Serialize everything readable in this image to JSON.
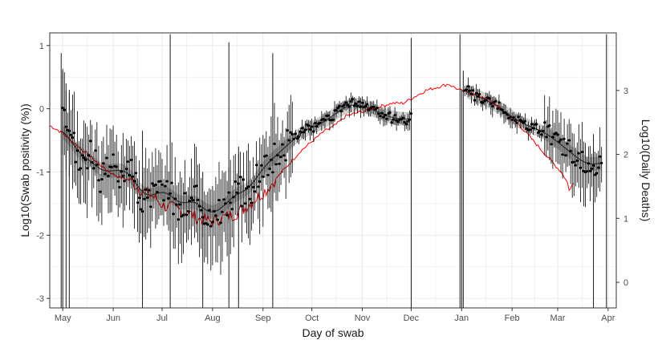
{
  "chart_data": {
    "type": "line",
    "title": "",
    "xlabel": "Day of swab",
    "ylabel": "Log10(Swab positivity (%))",
    "y2label": "Log10(Daily Deaths)",
    "xlim": [
      "2020-04-23",
      "2021-04-06"
    ],
    "ylim": [
      -3.15,
      1.2
    ],
    "y2lim": [
      -0.4,
      3.9
    ],
    "grid": true,
    "legend": "none",
    "x_ticks": [
      {
        "label": "May",
        "date": "2020-05-01"
      },
      {
        "label": "Jun",
        "date": "2020-06-01"
      },
      {
        "label": "Jul",
        "date": "2020-07-01"
      },
      {
        "label": "Aug",
        "date": "2020-08-01"
      },
      {
        "label": "Sep",
        "date": "2020-09-01"
      },
      {
        "label": "Oct",
        "date": "2020-10-01"
      },
      {
        "label": "Nov",
        "date": "2020-11-01"
      },
      {
        "label": "Dec",
        "date": "2020-12-01"
      },
      {
        "label": "Jan",
        "date": "2021-01-01"
      },
      {
        "label": "Feb",
        "date": "2021-02-01"
      },
      {
        "label": "Mar",
        "date": "2021-03-01"
      },
      {
        "label": "Apr",
        "date": "2021-04-01"
      }
    ],
    "y_ticks": [
      1,
      0,
      -1,
      -2,
      -3
    ],
    "y2_ticks": [
      3,
      2,
      1,
      0
    ],
    "colors": {
      "points": "#000000",
      "smooth": "#4d4d4d",
      "ribbon": "#bdbdbd",
      "deaths": "#ff0000",
      "grid": "#ebebeb"
    },
    "series": [
      {
        "values": [
          {
            "x": "2020-05-01",
            "y": -0.18
          },
          {
            "x": "2020-05-06",
            "y": -0.52
          },
          {
            "x": "2020-05-12",
            "y": -0.85
          },
          {
            "x": "2020-05-18",
            "y": -0.7
          },
          {
            "x": "2020-05-24",
            "y": -1.1
          },
          {
            "x": "2020-05-30",
            "y": -0.95
          },
          {
            "x": "2020-06-05",
            "y": -1.0
          },
          {
            "x": "2020-06-11",
            "y": -0.85
          },
          {
            "x": "2020-06-17",
            "y": -1.4
          },
          {
            "x": "2020-06-23",
            "y": -1.45
          },
          {
            "x": "2020-06-29",
            "y": -1.3
          },
          {
            "x": "2020-07-05",
            "y": -1.2
          },
          {
            "x": "2020-07-11",
            "y": -1.65
          },
          {
            "x": "2020-07-17",
            "y": -1.45
          },
          {
            "x": "2020-07-23",
            "y": -1.35
          },
          {
            "x": "2020-07-29",
            "y": -1.8
          },
          {
            "x": "2020-08-04",
            "y": -1.6
          },
          {
            "x": "2020-08-10",
            "y": -1.55
          },
          {
            "x": "2020-08-16",
            "y": -1.2
          },
          {
            "x": "2020-08-22",
            "y": -1.45
          },
          {
            "x": "2020-08-28",
            "y": -1.05
          },
          {
            "x": "2020-09-03",
            "y": -0.85
          },
          {
            "x": "2020-09-09",
            "y": -0.75
          },
          {
            "x": "2020-09-15",
            "y": -0.6
          },
          {
            "x": "2020-09-21",
            "y": -0.45
          },
          {
            "x": "2020-09-27",
            "y": -0.3
          },
          {
            "x": "2020-10-03",
            "y": -0.3
          },
          {
            "x": "2020-10-09",
            "y": -0.2
          },
          {
            "x": "2020-10-15",
            "y": -0.1
          },
          {
            "x": "2020-10-21",
            "y": 0.05
          },
          {
            "x": "2020-10-27",
            "y": 0.1
          },
          {
            "x": "2020-11-02",
            "y": 0.05
          },
          {
            "x": "2020-11-08",
            "y": -0.02
          },
          {
            "x": "2020-11-14",
            "y": -0.1
          },
          {
            "x": "2020-11-20",
            "y": -0.15
          },
          {
            "x": "2020-11-26",
            "y": -0.18
          },
          {
            "x": "2020-12-01",
            "y": -0.15
          },
          {
            "x": "2021-01-03",
            "y": 0.35
          },
          {
            "x": "2021-01-09",
            "y": 0.2
          },
          {
            "x": "2021-01-15",
            "y": 0.15
          },
          {
            "x": "2021-01-21",
            "y": 0.1
          },
          {
            "x": "2021-01-27",
            "y": -0.05
          },
          {
            "x": "2021-02-02",
            "y": -0.15
          },
          {
            "x": "2021-02-08",
            "y": -0.25
          },
          {
            "x": "2021-02-14",
            "y": -0.3
          },
          {
            "x": "2021-02-20",
            "y": -0.35
          },
          {
            "x": "2021-02-26",
            "y": -0.45
          },
          {
            "x": "2021-03-04",
            "y": -0.6
          },
          {
            "x": "2021-03-10",
            "y": -0.7
          },
          {
            "x": "2021-03-16",
            "y": -0.85
          },
          {
            "x": "2021-03-22",
            "y": -0.95
          },
          {
            "x": "2021-03-28",
            "y": -0.8
          }
        ]
      },
      {
        "axis": "right",
        "values": [
          {
            "x": "2020-04-23",
            "y": 2.45
          },
          {
            "x": "2020-04-30",
            "y": 2.35
          },
          {
            "x": "2020-05-07",
            "y": 2.2
          },
          {
            "x": "2020-05-14",
            "y": 2.05
          },
          {
            "x": "2020-05-21",
            "y": 1.9
          },
          {
            "x": "2020-05-28",
            "y": 1.75
          },
          {
            "x": "2020-06-04",
            "y": 1.65
          },
          {
            "x": "2020-06-11",
            "y": 1.6
          },
          {
            "x": "2020-06-18",
            "y": 1.45
          },
          {
            "x": "2020-06-25",
            "y": 1.35
          },
          {
            "x": "2020-07-02",
            "y": 1.2
          },
          {
            "x": "2020-07-09",
            "y": 1.15
          },
          {
            "x": "2020-07-16",
            "y": 1.1
          },
          {
            "x": "2020-07-23",
            "y": 1.0
          },
          {
            "x": "2020-07-30",
            "y": 0.95
          },
          {
            "x": "2020-08-06",
            "y": 1.0
          },
          {
            "x": "2020-08-13",
            "y": 1.05
          },
          {
            "x": "2020-08-20",
            "y": 1.15
          },
          {
            "x": "2020-08-27",
            "y": 1.3
          },
          {
            "x": "2020-09-03",
            "y": 1.45
          },
          {
            "x": "2020-09-10",
            "y": 1.65
          },
          {
            "x": "2020-09-17",
            "y": 1.85
          },
          {
            "x": "2020-09-24",
            "y": 2.05
          },
          {
            "x": "2020-10-01",
            "y": 2.2
          },
          {
            "x": "2020-10-08",
            "y": 2.35
          },
          {
            "x": "2020-10-15",
            "y": 2.45
          },
          {
            "x": "2020-10-22",
            "y": 2.6
          },
          {
            "x": "2020-10-29",
            "y": 2.65
          },
          {
            "x": "2020-11-05",
            "y": 2.7
          },
          {
            "x": "2020-11-12",
            "y": 2.75
          },
          {
            "x": "2020-11-19",
            "y": 2.8
          },
          {
            "x": "2020-11-26",
            "y": 2.8
          },
          {
            "x": "2020-12-03",
            "y": 2.9
          },
          {
            "x": "2020-12-10",
            "y": 3.0
          },
          {
            "x": "2020-12-17",
            "y": 3.05
          },
          {
            "x": "2020-12-24",
            "y": 3.1
          },
          {
            "x": "2020-12-31",
            "y": 3.0
          },
          {
            "x": "2021-01-07",
            "y": 2.95
          },
          {
            "x": "2021-01-14",
            "y": 2.9
          },
          {
            "x": "2021-01-21",
            "y": 2.8
          },
          {
            "x": "2021-01-28",
            "y": 2.65
          },
          {
            "x": "2021-02-04",
            "y": 2.5
          },
          {
            "x": "2021-02-11",
            "y": 2.3
          },
          {
            "x": "2021-02-18",
            "y": 2.1
          },
          {
            "x": "2021-02-25",
            "y": 1.9
          },
          {
            "x": "2021-03-04",
            "y": 1.7
          },
          {
            "x": "2021-03-09",
            "y": 1.45
          },
          {
            "x": "2021-03-11",
            "y": 1.55
          }
        ]
      }
    ]
  }
}
